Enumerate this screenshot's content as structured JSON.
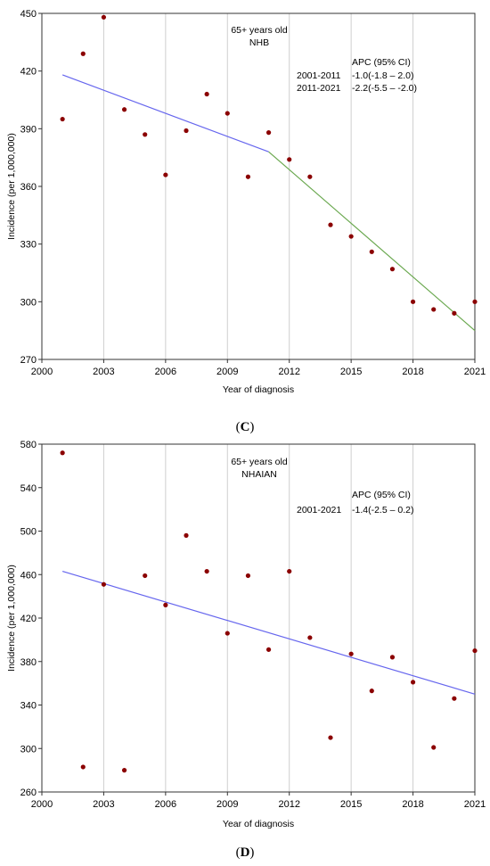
{
  "chart_data": [
    {
      "type": "scatter",
      "panel_label_prefix": "(",
      "panel_letter": "C",
      "panel_label_suffix": ")",
      "annotation_title": "65+ years old",
      "annotation_group": "NHB",
      "apc_header": "APC (95% CI)",
      "apc_rows": [
        {
          "period": "2001-2011",
          "value": "-1.0(-1.8 – 2.0)"
        },
        {
          "period": "2011-2021",
          "value": "-2.2(-5.5 – -2.0)"
        }
      ],
      "xlabel": "Year of diagnosis",
      "ylabel": "Incidence (per 1,000,000)",
      "xlim": [
        2000,
        2021
      ],
      "ylim": [
        270,
        450
      ],
      "xticks": [
        2000,
        2003,
        2006,
        2009,
        2012,
        2015,
        2018,
        2021
      ],
      "yticks": [
        270,
        300,
        330,
        360,
        390,
        420,
        450
      ],
      "grid": "vertical",
      "point_color": "#8b0000",
      "points": [
        {
          "x": 2001,
          "y": 395
        },
        {
          "x": 2002,
          "y": 429
        },
        {
          "x": 2003,
          "y": 448
        },
        {
          "x": 2004,
          "y": 400
        },
        {
          "x": 2005,
          "y": 387
        },
        {
          "x": 2006,
          "y": 366
        },
        {
          "x": 2007,
          "y": 389
        },
        {
          "x": 2008,
          "y": 408
        },
        {
          "x": 2009,
          "y": 398
        },
        {
          "x": 2010,
          "y": 365
        },
        {
          "x": 2011,
          "y": 388
        },
        {
          "x": 2012,
          "y": 374
        },
        {
          "x": 2013,
          "y": 365
        },
        {
          "x": 2014,
          "y": 340
        },
        {
          "x": 2015,
          "y": 334
        },
        {
          "x": 2016,
          "y": 326
        },
        {
          "x": 2017,
          "y": 317
        },
        {
          "x": 2018,
          "y": 300
        },
        {
          "x": 2019,
          "y": 296
        },
        {
          "x": 2020,
          "y": 294
        },
        {
          "x": 2021,
          "y": 300
        }
      ],
      "trend_segments": [
        {
          "x": [
            2001,
            2011
          ],
          "y": [
            418,
            378
          ],
          "color": "#6666ee"
        },
        {
          "x": [
            2011,
            2021
          ],
          "y": [
            378,
            285
          ],
          "color": "#6aa84f"
        }
      ]
    },
    {
      "type": "scatter",
      "panel_label_prefix": "(",
      "panel_letter": "D",
      "panel_label_suffix": ")",
      "annotation_title": "65+ years old",
      "annotation_group": "NHAIAN",
      "apc_header": "APC (95% CI)",
      "apc_rows": [
        {
          "period": "2001-2021",
          "value": "-1.4(-2.5 – 0.2)"
        }
      ],
      "xlabel": "Year of diagnosis",
      "ylabel": "Incidence (per 1,000,000)",
      "xlim": [
        2000,
        2021
      ],
      "ylim": [
        260,
        580
      ],
      "xticks": [
        2000,
        2003,
        2006,
        2009,
        2012,
        2015,
        2018,
        2021
      ],
      "yticks": [
        260,
        300,
        340,
        380,
        420,
        460,
        500,
        540,
        580
      ],
      "grid": "vertical",
      "point_color": "#8b0000",
      "points": [
        {
          "x": 2001,
          "y": 572
        },
        {
          "x": 2002,
          "y": 283
        },
        {
          "x": 2003,
          "y": 451
        },
        {
          "x": 2004,
          "y": 280
        },
        {
          "x": 2005,
          "y": 459
        },
        {
          "x": 2006,
          "y": 432
        },
        {
          "x": 2007,
          "y": 496
        },
        {
          "x": 2008,
          "y": 463
        },
        {
          "x": 2009,
          "y": 406
        },
        {
          "x": 2010,
          "y": 459
        },
        {
          "x": 2011,
          "y": 391
        },
        {
          "x": 2012,
          "y": 463
        },
        {
          "x": 2013,
          "y": 402
        },
        {
          "x": 2014,
          "y": 310
        },
        {
          "x": 2015,
          "y": 387
        },
        {
          "x": 2016,
          "y": 353
        },
        {
          "x": 2017,
          "y": 384
        },
        {
          "x": 2018,
          "y": 361
        },
        {
          "x": 2019,
          "y": 301
        },
        {
          "x": 2020,
          "y": 346
        },
        {
          "x": 2021,
          "y": 390
        }
      ],
      "trend_segments": [
        {
          "x": [
            2001,
            2021
          ],
          "y": [
            463,
            350
          ],
          "color": "#6666ee"
        }
      ]
    }
  ]
}
